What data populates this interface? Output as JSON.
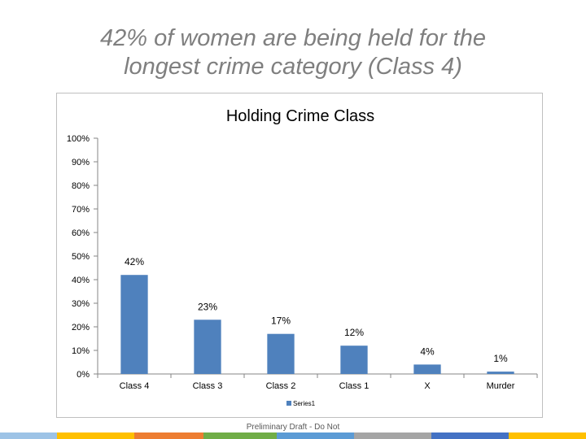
{
  "slide": {
    "title_line1": "42% of women are being held for the",
    "title_line2": "longest crime category (Class 4)",
    "footer": "Preliminary Draft - Do Not"
  },
  "colors": {
    "bar": "#4f81bd",
    "axis": "#868686",
    "title": "#7f7f7f",
    "bottom_bar": [
      "#9dc3e6",
      "#ffc000",
      "#ed7d31",
      "#70ad47",
      "#5b9bd5",
      "#a5a5a5",
      "#4472c4",
      "#ffc000"
    ]
  },
  "chart_data": {
    "type": "bar",
    "title": "Holding Crime Class",
    "categories": [
      "Class 4",
      "Class 3",
      "Class 2",
      "Class 1",
      "X",
      "Murder"
    ],
    "series": [
      {
        "name": "Series1",
        "values": [
          0.42,
          0.23,
          0.17,
          0.12,
          0.04,
          0.01
        ]
      }
    ],
    "data_labels": [
      "42%",
      "23%",
      "17%",
      "12%",
      "4%",
      "1%"
    ],
    "ylim": [
      0,
      1
    ],
    "yticks": [
      "0%",
      "10%",
      "20%",
      "30%",
      "40%",
      "50%",
      "60%",
      "70%",
      "80%",
      "90%",
      "100%"
    ],
    "xlabel": "",
    "ylabel": "",
    "grid": false,
    "legend": "bottom"
  }
}
